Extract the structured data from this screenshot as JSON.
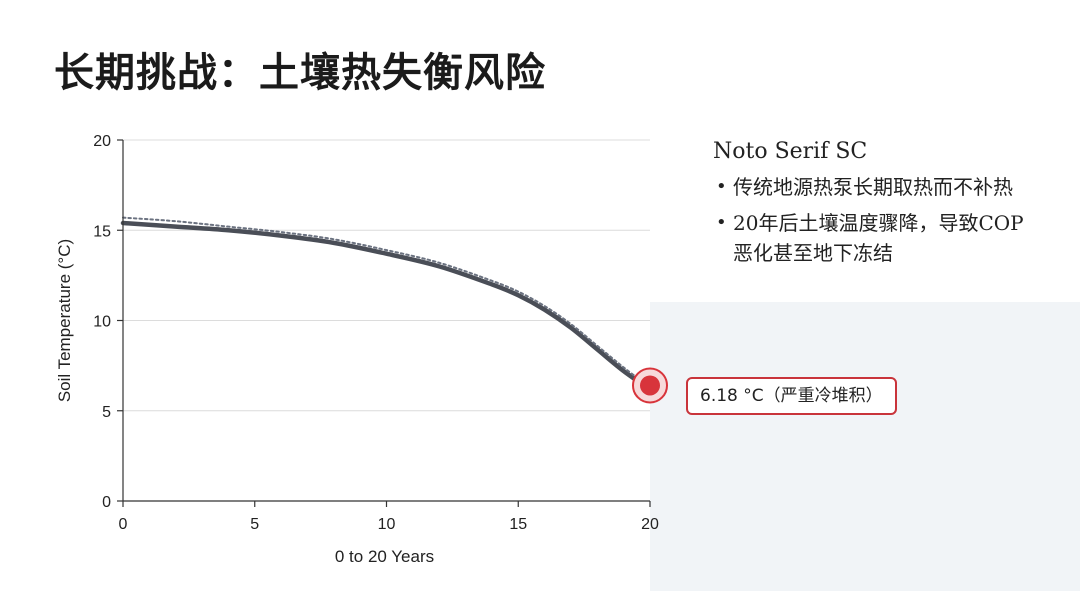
{
  "slide": {
    "title": "长期挑战：土壤热失衡风险"
  },
  "sidebar": {
    "heading": "Noto Serif SC",
    "bullets": [
      "传统地源热泵长期取热而不补热",
      "20年后土壤温度骤降，导致COP 恶化甚至地下冻结"
    ]
  },
  "callout": {
    "text": "6.18 °C（严重冷堆积）"
  },
  "colors": {
    "main_line": "#4a4e57",
    "dotted_line": "#6b7280",
    "highlight": "#d8343b",
    "background_band": "#f1f4f7"
  },
  "chart_data": {
    "type": "line",
    "xlabel": "0 to 20 Years",
    "ylabel": "Soil Temperature (°C)",
    "xlim": [
      0,
      20
    ],
    "ylim": [
      0,
      20
    ],
    "x_ticks": [
      0,
      5,
      10,
      15,
      20
    ],
    "y_ticks": [
      0,
      5,
      10,
      15,
      20
    ],
    "grid": "horizontal",
    "series": [
      {
        "style": "solid",
        "x": [
          0,
          2,
          4,
          6,
          8,
          10,
          12,
          14,
          15,
          16,
          17,
          18,
          19,
          20
        ],
        "y": [
          15.4,
          15.2,
          15.0,
          14.7,
          14.3,
          13.7,
          13.0,
          12.0,
          11.4,
          10.6,
          9.6,
          8.4,
          7.2,
          6.18
        ]
      },
      {
        "style": "dotted",
        "x": [
          0,
          2,
          4,
          6,
          8,
          10,
          12,
          14,
          15,
          16,
          17,
          18,
          19,
          20
        ],
        "y": [
          15.7,
          15.5,
          15.2,
          14.9,
          14.5,
          13.9,
          13.2,
          12.2,
          11.6,
          10.8,
          9.8,
          8.6,
          7.4,
          6.3
        ]
      }
    ],
    "highlight_point": {
      "x": 20,
      "y": 6.18
    }
  }
}
